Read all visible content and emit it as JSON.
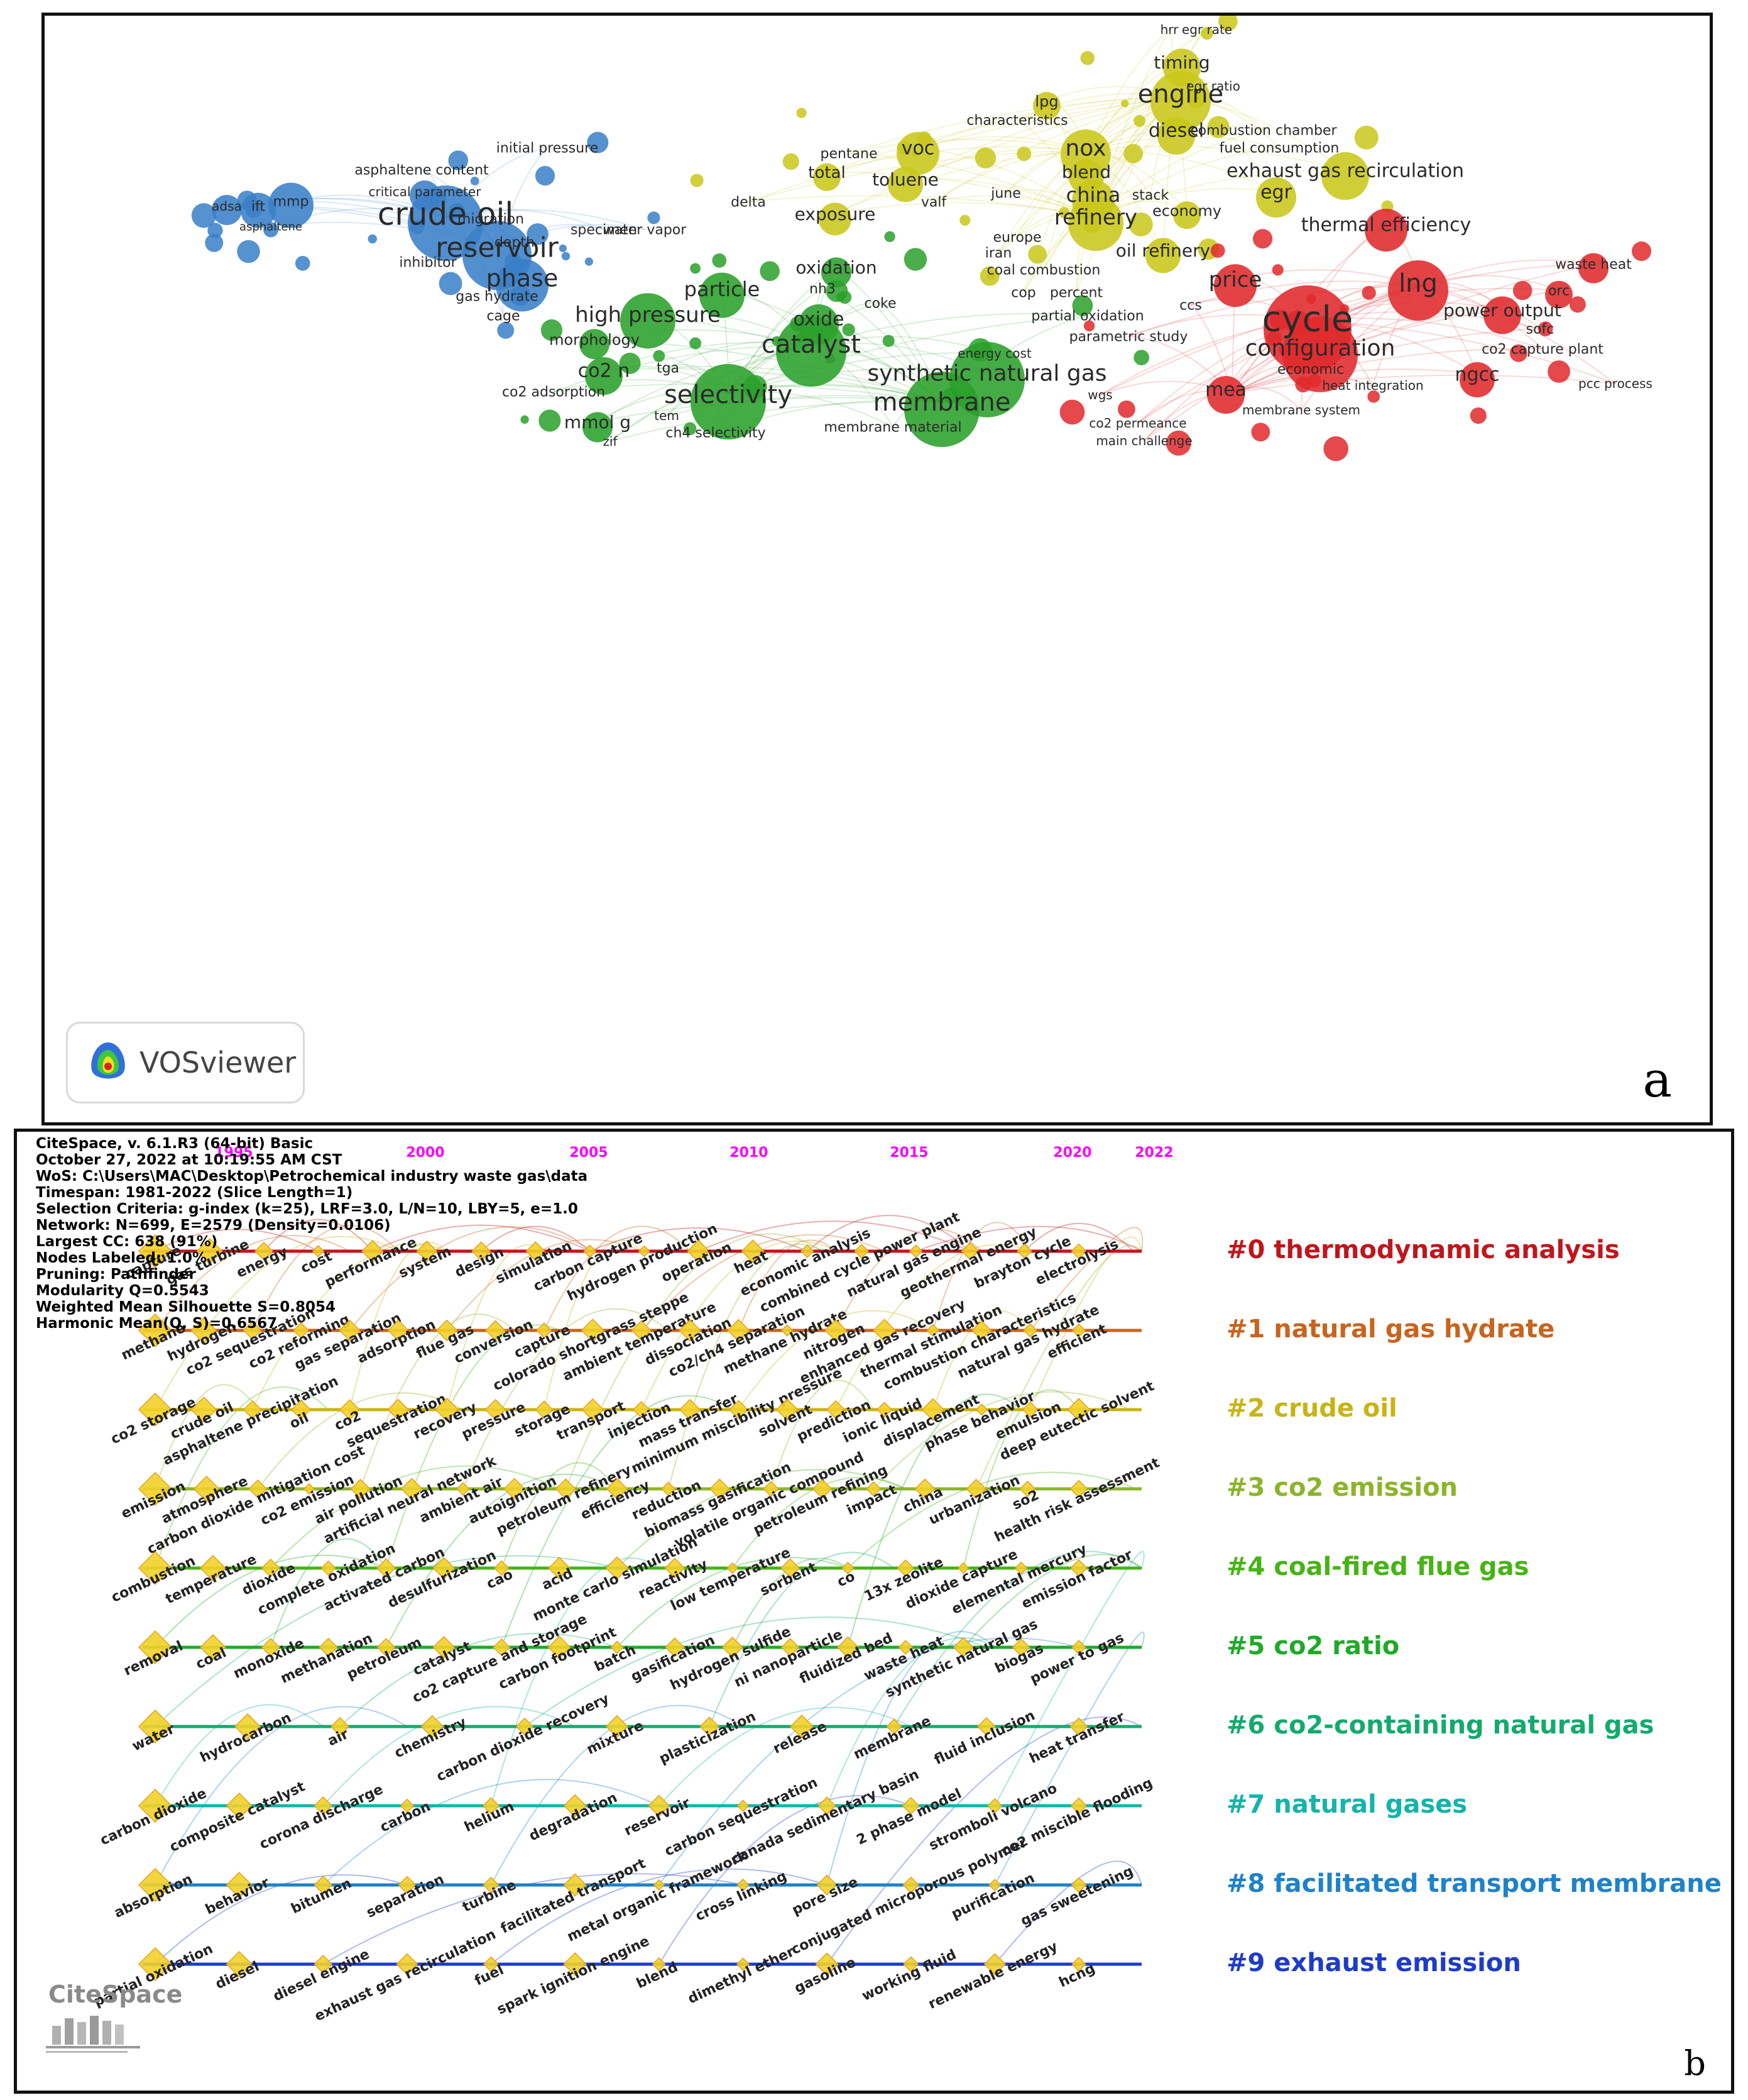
{
  "panel_a": {
    "letter": "a",
    "logo_label": "VOSviewer",
    "clusters": [
      {
        "color": "#3a7fc8",
        "terms": [
          "crude oil",
          "reservoir",
          "phase",
          "mmp",
          "ift",
          "adsa",
          "asphaltene",
          "asphaltene content",
          "critical parameter",
          "migration",
          "depth",
          "inhibitor",
          "gas hydrate",
          "cage",
          "initial pressure",
          "specimen",
          "water vapor"
        ]
      },
      {
        "color": "#c9c71a",
        "terms": [
          "engine",
          "timing",
          "hrr",
          "egr rate",
          "egr ratio",
          "lpg",
          "characteristics",
          "diesel",
          "combustion chamber",
          "nox",
          "voc",
          "pentane",
          "fuel consumption",
          "exhaust gas recirculation",
          "blend",
          "total",
          "toluene",
          "egr",
          "china",
          "june",
          "stack",
          "delta",
          "valf",
          "exposure",
          "refinery",
          "economy",
          "europe",
          "iran",
          "oil refinery",
          "coal combustion",
          "cop",
          "percent"
        ]
      },
      {
        "color": "#2aa02a",
        "terms": [
          "oxidation",
          "particle",
          "nh3",
          "high pressure",
          "oxide",
          "coke",
          "partial oxidation",
          "morphology",
          "catalyst",
          "tga",
          "co2 n",
          "synthetic natural gas",
          "energy cost",
          "co2 adsorption",
          "selectivity",
          "membrane",
          "mmol g",
          "tem",
          "zif",
          "ch4 selectivity",
          "membrane material"
        ]
      },
      {
        "color": "#e0292c",
        "terms": [
          "thermal efficiency",
          "waste heat",
          "price",
          "lng",
          "orc",
          "ccs",
          "cycle",
          "power output",
          "sofc",
          "parametric study",
          "configuration",
          "co2 capture plant",
          "economic",
          "ngcc",
          "heat integration",
          "mea",
          "pcc process",
          "wgs",
          "membrane system",
          "co2 permeance",
          "main challenge"
        ]
      }
    ]
  },
  "panel_b": {
    "letter": "b",
    "logo_label": "CiteSpace",
    "header": [
      "CiteSpace, v. 6.1.R3 (64-bit) Basic",
      "October 27, 2022 at 10:19:55 AM CST",
      "WoS: C:\\Users\\MAC\\Desktop\\Petrochemical industry waste gas\\data",
      "Timespan: 1981-2022 (Slice Length=1)",
      "Selection Criteria: g-index (k=25), LRF=3.0, L/N=10, LBY=5, e=1.0",
      "Network: N=699, E=2579 (Density=0.0106)",
      "Largest CC: 638 (91%)",
      "Nodes Labeled: 1.0%",
      "Pruning: Pathfinder",
      "Modularity Q=0.5543",
      "Weighted Mean Silhouette S=0.8054",
      "Harmonic Mean(Q, S)=0.6567"
    ],
    "years": [
      "1995",
      "2000",
      "2005",
      "2010",
      "2015",
      "2020",
      "2022"
    ],
    "year_color": "#ff00ff",
    "clusters": [
      {
        "label": "#0 thermodynamic analysis",
        "color": "#c0161b",
        "terms": [
          "capture",
          "gas turbine",
          "energy",
          "cost",
          "performance",
          "system",
          "design",
          "simulation",
          "carbon capture",
          "hydrogen production",
          "operation",
          "heat",
          "economic analysis",
          "combined cycle power plant",
          "natural gas engine",
          "geothermal energy",
          "brayton cycle",
          "electrolysis"
        ]
      },
      {
        "label": "#1 natural gas hydrate",
        "color": "#c8641e",
        "terms": [
          "methane",
          "hydrogen",
          "co2 sequestration",
          "co2 reforming",
          "gas separation",
          "adsorption",
          "flue gas",
          "conversion",
          "capture",
          "colorado shortgrass steppe",
          "ambient temperature",
          "dissociation",
          "co2/ch4 separation",
          "methane hydrate",
          "nitrogen",
          "enhanced gas recovery",
          "thermal stimulation",
          "combustion characteristics",
          "natural gas hydrate",
          "efficient"
        ]
      },
      {
        "label": "#2 crude oil",
        "color": "#c8b414",
        "terms": [
          "co2 storage",
          "crude oil",
          "asphaltene precipitation",
          "oil",
          "co2",
          "sequestration",
          "recovery",
          "pressure",
          "storage",
          "transport",
          "injection",
          "mass transfer",
          "minimum miscibility pressure",
          "solvent",
          "prediction",
          "ionic liquid",
          "displacement",
          "phase behavior",
          "emulsion",
          "deep eutectic solvent"
        ]
      },
      {
        "label": "#3 co2 emission",
        "color": "#8cb42a",
        "terms": [
          "emission",
          "atmosphere",
          "carbon dioxide mitigation cost",
          "co2 emission",
          "air pollution",
          "artificial neural network",
          "ambient air",
          "autoignition",
          "petroleum refinery",
          "efficiency",
          "reduction",
          "biomass gasification",
          "volatile organic compound",
          "petroleum refining",
          "impact",
          "china",
          "urbanization",
          "so2",
          "health risk assessment"
        ]
      },
      {
        "label": "#4 coal-fired flue gas",
        "color": "#46b414",
        "terms": [
          "combustion",
          "temperature",
          "dioxide",
          "complete oxidation",
          "activated carbon",
          "desulfurization",
          "cao",
          "acid",
          "monte carlo simulation",
          "reactivity",
          "low temperature",
          "sorbent",
          "co",
          "13x zeolite",
          "dioxide capture",
          "elemental mercury",
          "emission factor"
        ]
      },
      {
        "label": "#5 co2 ratio",
        "color": "#1eaa28",
        "terms": [
          "removal",
          "coal",
          "monoxide",
          "methanation",
          "petroleum",
          "catalyst",
          "co2 capture and storage",
          "carbon footprint",
          "batch",
          "gasification",
          "hydrogen sulfide",
          "ni nanoparticle",
          "fluidized bed",
          "waste heat",
          "synthetic natural gas",
          "biogas",
          "power to gas"
        ]
      },
      {
        "label": "#6 co2-containing natural gas",
        "color": "#14aa6e",
        "terms": [
          "water",
          "hydrocarbon",
          "air",
          "chemistry",
          "carbon dioxide recovery",
          "mixture",
          "plasticization",
          "release",
          "membrane",
          "fluid inclusion",
          "heat transfer"
        ]
      },
      {
        "label": "#7 natural gases",
        "color": "#14b4aa",
        "terms": [
          "carbon dioxide",
          "composite catalyst",
          "corona discharge",
          "carbon",
          "helium",
          "degradation",
          "reservoir",
          "carbon sequestration",
          "canada sedimentary basin",
          "2 phase model",
          "stromboli volcano",
          "co2 miscible flooding"
        ]
      },
      {
        "label": "#8 facilitated transport membrane",
        "color": "#1e82c8",
        "terms": [
          "absorption",
          "behavior",
          "bitumen",
          "separation",
          "turbine",
          "facilitated transport",
          "metal organic framework",
          "cross linking",
          "pore size",
          "conjugated microporous polymer",
          "purification",
          "gas sweetening"
        ]
      },
      {
        "label": "#9 exhaust emission",
        "color": "#1e3cc8",
        "terms": [
          "partial oxidation",
          "diesel",
          "diesel engine",
          "exhaust gas recirculation",
          "fuel",
          "spark ignition engine",
          "blend",
          "dimethyl ether",
          "gasoline",
          "working fluid",
          "renewable energy",
          "hcng"
        ]
      }
    ]
  }
}
